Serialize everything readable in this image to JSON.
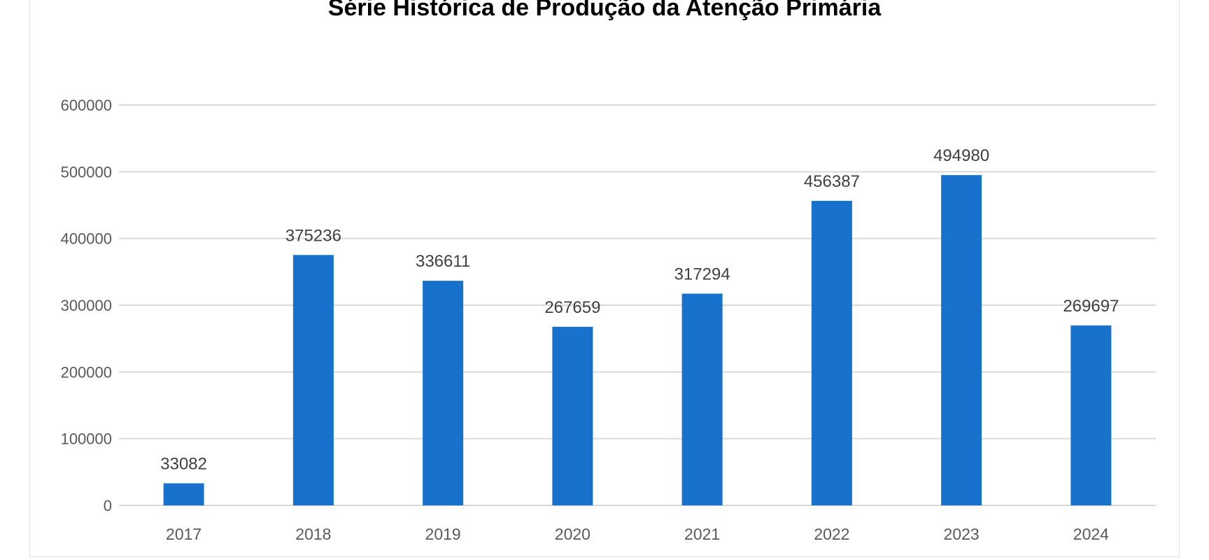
{
  "colors": {
    "bar": "#1872CC",
    "grid": "#d9d9d9",
    "tick_text": "#595959",
    "label_text": "#404040"
  },
  "chart_data": {
    "type": "bar",
    "title": "Série Histórica de Produção da Atenção Primária",
    "xlabel": "",
    "ylabel": "",
    "categories": [
      "2017",
      "2018",
      "2019",
      "2020",
      "2021",
      "2022",
      "2023",
      "2024"
    ],
    "values": [
      33082,
      375236,
      336611,
      267659,
      317294,
      456387,
      494980,
      269697
    ],
    "data_labels": [
      "33082",
      "375236",
      "336611",
      "267659",
      "317294",
      "456387",
      "494980",
      "269697"
    ],
    "ylim": [
      0,
      600000
    ],
    "yticks": [
      0,
      100000,
      200000,
      300000,
      400000,
      500000,
      600000
    ],
    "ytick_labels": [
      "0",
      "100000",
      "200000",
      "300000",
      "400000",
      "500000",
      "600000"
    ],
    "grid": true,
    "legend": "none"
  }
}
